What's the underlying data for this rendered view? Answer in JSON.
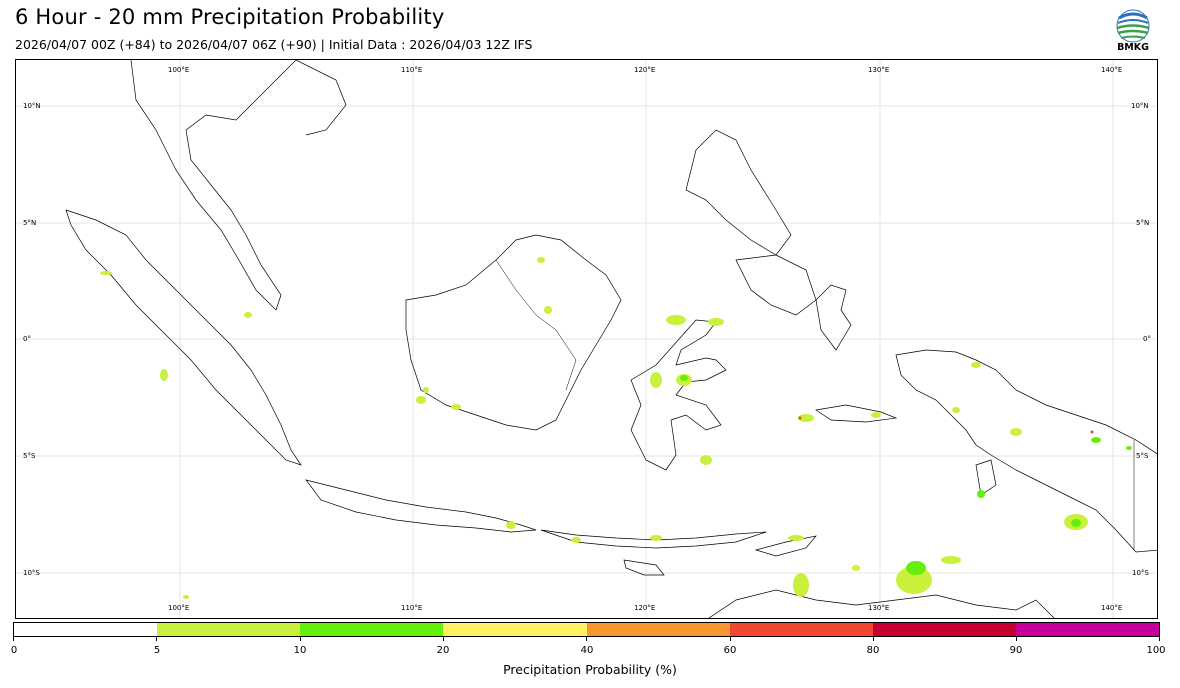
{
  "title": "6 Hour - 20 mm Precipitation Probability",
  "subtitle": "2026/04/07 00Z (+84) to 2026/04/07 06Z (+90) | Initial Data : 2026/04/03 12Z IFS",
  "logo": {
    "text": "BMKG",
    "icon": "bmkg-logo-icon"
  },
  "map": {
    "lon_labels": [
      "100°E",
      "110°E",
      "120°E",
      "130°E",
      "140°E"
    ],
    "lat_labels": [
      "10°N",
      "5°N",
      "0°",
      "5°S",
      "10°S"
    ]
  },
  "colorbar": {
    "label": "Precipitation Probability (%)",
    "ticks": [
      "0",
      "5",
      "10",
      "20",
      "40",
      "60",
      "80",
      "90",
      "100"
    ],
    "colors": [
      "#ffffff",
      "#c8f03c",
      "#64f00a",
      "#fff064",
      "#fa9632",
      "#f04632",
      "#c80032",
      "#c8009b"
    ]
  },
  "colors": {
    "land_outline": "#000000",
    "grid": "#e3e3e3",
    "low_prob": "#c8f03c",
    "mid_prob": "#64f00a"
  }
}
